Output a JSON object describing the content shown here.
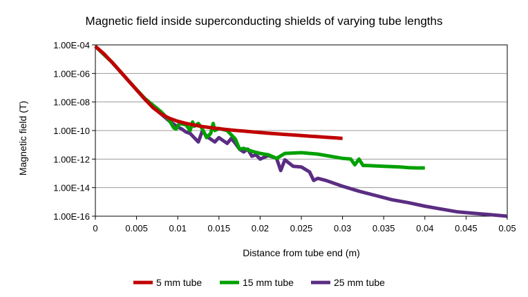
{
  "chart_data": {
    "type": "line",
    "title": "Magnetic field inside superconducting shields of varying tube lengths",
    "xlabel": "Distance from tube end (m)",
    "ylabel": "Magnetic field (T)",
    "x_scale": "linear",
    "y_scale": "log",
    "xlim": [
      0,
      0.05
    ],
    "ylim_exponent": [
      -16,
      -4
    ],
    "x_ticks": [
      0,
      0.005,
      0.01,
      0.015,
      0.02,
      0.025,
      0.03,
      0.035,
      0.04,
      0.045,
      0.05
    ],
    "x_tick_labels": [
      "0",
      "0.005",
      "0.01",
      "0.015",
      "0.02",
      "0.025",
      "0.03",
      "0.035",
      "0.04",
      "0.045",
      "0.05"
    ],
    "y_ticks_exponent": [
      -4,
      -6,
      -8,
      -10,
      -12,
      -14,
      -16
    ],
    "y_tick_labels": [
      "1.00E-04",
      "1.00E-06",
      "1.00E-08",
      "1.00E-10",
      "1.00E-12",
      "1.00E-14",
      "1.00E-16"
    ],
    "grid": "horizontal major gridlines",
    "legend_position": "bottom",
    "series": [
      {
        "name": "5 mm tube",
        "color": "#c00000",
        "x": [
          0,
          0.001,
          0.002,
          0.003,
          0.004,
          0.005,
          0.006,
          0.007,
          0.008,
          0.009,
          0.01,
          0.011,
          0.012,
          0.013,
          0.014,
          0.015,
          0.016,
          0.017,
          0.018,
          0.019,
          0.02,
          0.021,
          0.022,
          0.023,
          0.024,
          0.025,
          0.026,
          0.027,
          0.028,
          0.029,
          0.03
        ],
        "log10_y": [
          -4.1,
          -4.6,
          -5.2,
          -5.85,
          -6.5,
          -7.15,
          -7.8,
          -8.4,
          -8.85,
          -9.15,
          -9.35,
          -9.5,
          -9.62,
          -9.72,
          -9.8,
          -9.87,
          -9.93,
          -9.99,
          -10.04,
          -10.09,
          -10.14,
          -10.19,
          -10.23,
          -10.27,
          -10.31,
          -10.35,
          -10.39,
          -10.43,
          -10.47,
          -10.51,
          -10.55
        ]
      },
      {
        "name": "15 mm tube",
        "color": "#00a000",
        "x": [
          0,
          0.002,
          0.004,
          0.006,
          0.008,
          0.009,
          0.0095,
          0.0098,
          0.0102,
          0.011,
          0.0115,
          0.0118,
          0.012,
          0.0125,
          0.013,
          0.0135,
          0.014,
          0.0143,
          0.0145,
          0.015,
          0.016,
          0.0165,
          0.017,
          0.0175,
          0.018,
          0.019,
          0.02,
          0.021,
          0.022,
          0.023,
          0.025,
          0.027,
          0.029,
          0.03,
          0.031,
          0.0315,
          0.032,
          0.0325,
          0.033,
          0.035,
          0.037,
          0.038,
          0.039,
          0.04
        ],
        "log10_y": [
          -4.1,
          -5.2,
          -6.5,
          -7.75,
          -8.7,
          -9.3,
          -9.8,
          -9.9,
          -9.5,
          -9.6,
          -10.0,
          -9.4,
          -9.7,
          -9.5,
          -9.9,
          -10.5,
          -10.2,
          -9.5,
          -10.0,
          -9.85,
          -10.0,
          -10.3,
          -10.6,
          -11.3,
          -11.25,
          -11.45,
          -11.6,
          -11.7,
          -11.95,
          -11.6,
          -11.55,
          -11.65,
          -11.85,
          -11.95,
          -12.0,
          -12.4,
          -12.0,
          -12.45,
          -12.45,
          -12.5,
          -12.55,
          -12.6,
          -12.62,
          -12.62
        ]
      },
      {
        "name": "25 mm tube",
        "color": "#5a2d82",
        "x": [
          0,
          0.002,
          0.004,
          0.006,
          0.0075,
          0.0085,
          0.009,
          0.0095,
          0.01,
          0.0105,
          0.011,
          0.0115,
          0.012,
          0.0125,
          0.013,
          0.0135,
          0.014,
          0.0145,
          0.015,
          0.0155,
          0.016,
          0.0165,
          0.017,
          0.0175,
          0.018,
          0.0185,
          0.019,
          0.0195,
          0.02,
          0.021,
          0.022,
          0.0225,
          0.023,
          0.024,
          0.025,
          0.026,
          0.0265,
          0.027,
          0.028,
          0.03,
          0.032,
          0.034,
          0.036,
          0.038,
          0.04,
          0.042,
          0.044,
          0.046,
          0.048,
          0.05
        ],
        "log10_y": [
          -4.1,
          -5.2,
          -6.5,
          -7.8,
          -8.6,
          -9.1,
          -9.35,
          -9.55,
          -9.75,
          -9.9,
          -10.1,
          -10.2,
          -10.5,
          -10.8,
          -10.0,
          -10.4,
          -10.6,
          -10.8,
          -10.5,
          -10.7,
          -10.9,
          -10.55,
          -10.9,
          -11.3,
          -11.5,
          -11.3,
          -11.8,
          -11.7,
          -12.0,
          -11.75,
          -11.95,
          -12.8,
          -12.05,
          -12.5,
          -12.55,
          -12.9,
          -13.5,
          -13.35,
          -13.5,
          -13.9,
          -14.25,
          -14.55,
          -14.85,
          -15.05,
          -15.3,
          -15.5,
          -15.7,
          -15.8,
          -15.9,
          -16.0
        ]
      }
    ]
  }
}
